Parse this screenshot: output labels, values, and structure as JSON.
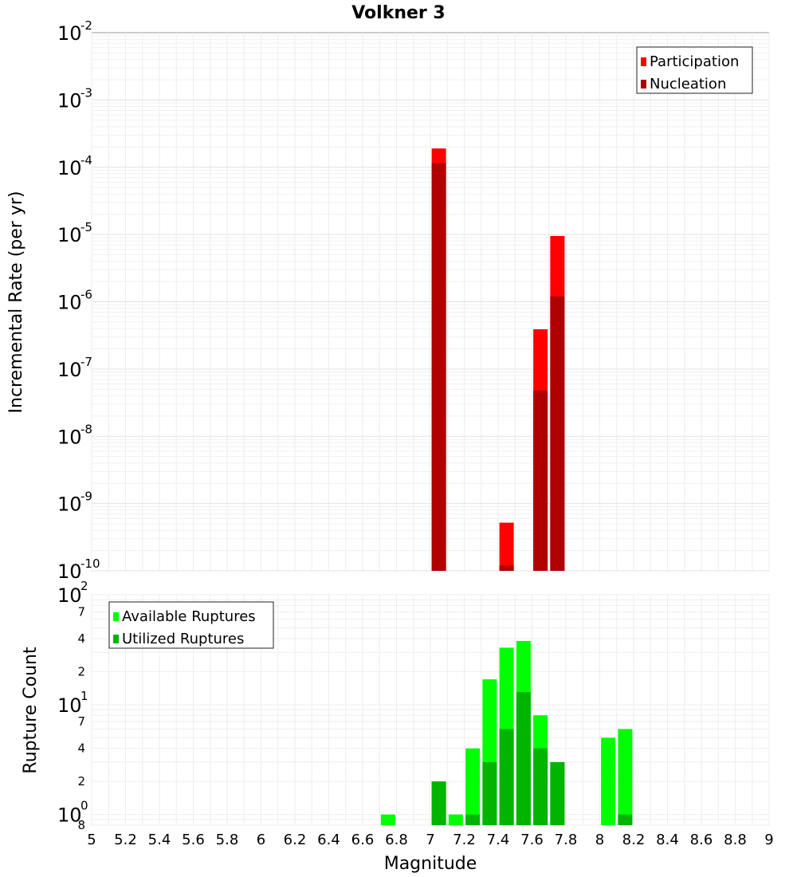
{
  "chart_data": [
    {
      "type": "bar",
      "title": "Volkner 3",
      "ylabel": "Incremental Rate (per yr)",
      "xlabel": "",
      "xlim": [
        5,
        9
      ],
      "ylim": [
        1e-10,
        0.01
      ],
      "yscale": "log",
      "grid": true,
      "legend_position": "top-right",
      "ytick_labels": [
        {
          "base": "10",
          "exp": "-2"
        },
        {
          "base": "10",
          "exp": "-3"
        },
        {
          "base": "10",
          "exp": "-4"
        },
        {
          "base": "10",
          "exp": "-5"
        },
        {
          "base": "10",
          "exp": "-6"
        },
        {
          "base": "10",
          "exp": "-7"
        },
        {
          "base": "10",
          "exp": "-8"
        },
        {
          "base": "10",
          "exp": "-9"
        },
        {
          "base": "10",
          "exp": "-10"
        }
      ],
      "series": [
        {
          "name": "Participation",
          "color": "#ff0000",
          "x": [
            7.05,
            7.45,
            7.65,
            7.75
          ],
          "values": [
            0.00019,
            5.2e-10,
            3.9e-07,
            9.5e-06
          ]
        },
        {
          "name": "Nucleation",
          "color": "#b00000",
          "x": [
            7.05,
            7.45,
            7.65,
            7.75
          ],
          "values": [
            0.000115,
            1.2e-10,
            4.8e-08,
            1.2e-06
          ]
        }
      ]
    },
    {
      "type": "bar",
      "title": "",
      "ylabel": "Rupture Count",
      "xlabel": "Magnitude",
      "xlim": [
        5,
        9
      ],
      "ylim": [
        0.8,
        100
      ],
      "yscale": "log",
      "grid": true,
      "legend_position": "top-left",
      "xtick_labels": [
        "5",
        "5.2",
        "5.4",
        "5.6",
        "5.8",
        "6",
        "6.2",
        "6.4",
        "6.6",
        "6.8",
        "7",
        "7.2",
        "7.4",
        "7.6",
        "7.8",
        "8",
        "8.2",
        "8.4",
        "8.6",
        "8.8",
        "9"
      ],
      "ytick_labels": {
        "major": [
          {
            "value": 100,
            "base": "10",
            "exp": "2"
          },
          {
            "value": 10,
            "base": "10",
            "exp": "1"
          },
          {
            "value": 1,
            "base": "10",
            "exp": "0"
          }
        ],
        "minor": [
          {
            "value": 70,
            "label": "7"
          },
          {
            "value": 40,
            "label": "4"
          },
          {
            "value": 20,
            "label": "2"
          },
          {
            "value": 7,
            "label": "7"
          },
          {
            "value": 4,
            "label": "4"
          },
          {
            "value": 2,
            "label": "2"
          },
          {
            "value": 0.8,
            "label": "8"
          }
        ]
      },
      "series": [
        {
          "name": "Available Ruptures",
          "color": "#00ff00",
          "x": [
            6.75,
            7.05,
            7.15,
            7.25,
            7.35,
            7.45,
            7.55,
            7.65,
            7.75,
            8.05,
            8.15
          ],
          "values": [
            1,
            2,
            1,
            4,
            17,
            33,
            38,
            8,
            3,
            5,
            6
          ]
        },
        {
          "name": "Utilized Ruptures",
          "color": "#00b400",
          "x": [
            7.05,
            7.25,
            7.35,
            7.45,
            7.55,
            7.65,
            7.75,
            8.15
          ],
          "values": [
            2,
            1,
            3,
            6,
            13,
            4,
            3,
            1
          ]
        }
      ]
    }
  ]
}
